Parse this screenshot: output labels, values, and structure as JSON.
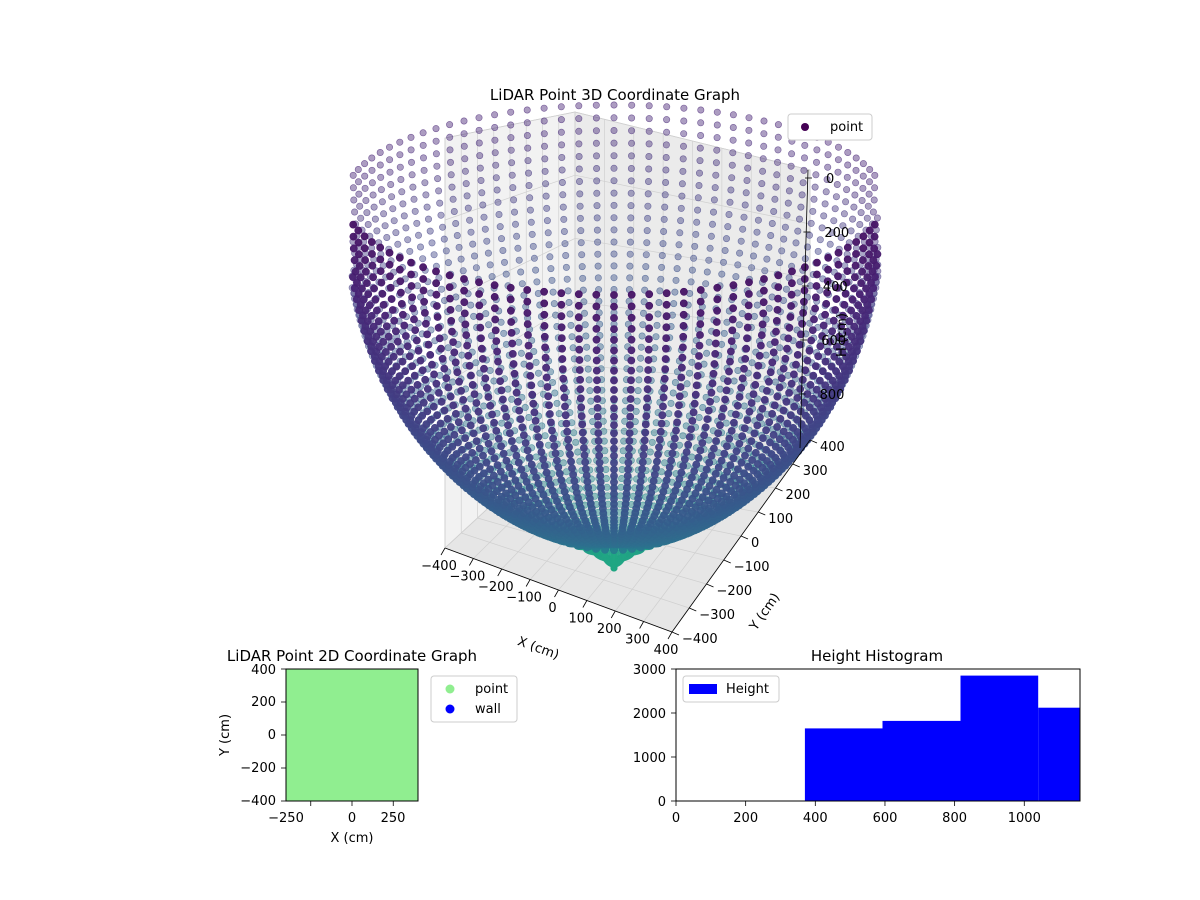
{
  "chart_data": [
    {
      "type": "scatter3d",
      "title": "LiDAR Point 3D Coordinate Graph",
      "xlabel": "X (cm)",
      "ylabel": "Y (cm)",
      "zlabel": "H (cm)",
      "xlim": [
        -400,
        400
      ],
      "ylim": [
        -400,
        400
      ],
      "zlim": [
        0,
        1000
      ],
      "z_inverted": true,
      "x_ticks": [
        "−400",
        "−300",
        "−200",
        "−100",
        "0",
        "100",
        "200",
        "300",
        "400"
      ],
      "y_ticks": [
        "−400",
        "−300",
        "−200",
        "−100",
        "0",
        "100",
        "200",
        "300",
        "400"
      ],
      "z_ticks": [
        "0",
        "200",
        "400",
        "600",
        "800"
      ],
      "legend": {
        "labels": [
          "point"
        ],
        "location": "upper right"
      },
      "colormap": "viridis",
      "shape": "inverted dome of points on concentric rings converging toward the floor center",
      "rings": 46,
      "spokes": 96
    },
    {
      "type": "scatter",
      "title": "LiDAR Point 2D Coordinate Graph",
      "xlabel": "X (cm)",
      "ylabel": "Y (cm)",
      "xlim": [
        -400,
        400
      ],
      "ylim": [
        -400,
        400
      ],
      "x_ticks": [
        "−250",
        "0",
        "250"
      ],
      "y_ticks": [
        "−400",
        "−200",
        "0",
        "200",
        "400"
      ],
      "series": [
        {
          "name": "point",
          "color": "#90ee90",
          "fill": "full-area"
        },
        {
          "name": "wall",
          "color": "#0000ff"
        }
      ],
      "legend": "outside right"
    },
    {
      "type": "bar",
      "title": "Height Histogram",
      "xlim": [
        0,
        1160
      ],
      "ylim": [
        0,
        3000
      ],
      "x_ticks": [
        "0",
        "200",
        "400",
        "600",
        "800",
        "1000"
      ],
      "y_ticks": [
        "0",
        "1000",
        "2000",
        "3000"
      ],
      "bins": [
        {
          "x0": 370,
          "x1": 593,
          "value": 1650
        },
        {
          "x0": 593,
          "x1": 817,
          "value": 1820
        },
        {
          "x0": 817,
          "x1": 1040,
          "value": 2850
        },
        {
          "x0": 1040,
          "x1": 1160,
          "value": 2120
        }
      ],
      "series": [
        {
          "name": "Height",
          "color": "#0000ff"
        }
      ],
      "legend": "upper left"
    }
  ]
}
